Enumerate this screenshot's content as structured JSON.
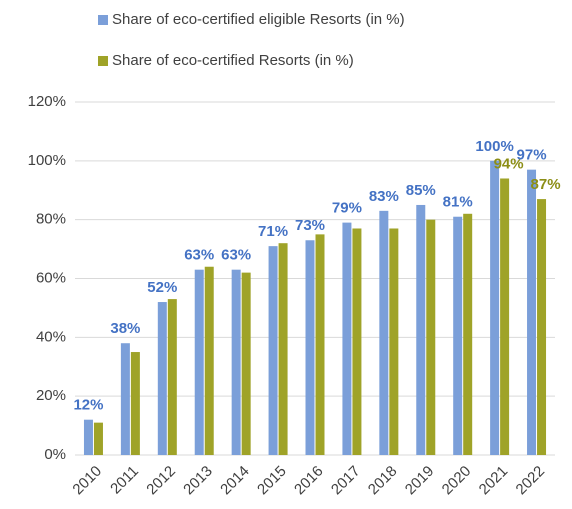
{
  "chart_data": {
    "type": "bar",
    "categories": [
      "2010",
      "2011",
      "2012",
      "2013",
      "2014",
      "2015",
      "2016",
      "2017",
      "2018",
      "2019",
      "2020",
      "2021",
      "2022"
    ],
    "series": [
      {
        "name": "Share of eco-certified eligible Resorts (in %)",
        "color": "#7b9fd9",
        "values": [
          12,
          38,
          52,
          63,
          63,
          71,
          73,
          79,
          83,
          85,
          81,
          100,
          97
        ],
        "value_labels": [
          "12%",
          "38%",
          "52%",
          "63%",
          "63%",
          "71%",
          "73%",
          "79%",
          "83%",
          "85%",
          "81%",
          "100%",
          "97%"
        ],
        "label_color": "#4472c4"
      },
      {
        "name": "Share of eco-certified Resorts (in %)",
        "color": "#9fa328",
        "values": [
          11,
          35,
          53,
          64,
          62,
          72,
          75,
          77,
          77,
          80,
          82,
          94,
          87
        ],
        "value_labels": [
          null,
          null,
          null,
          null,
          null,
          null,
          null,
          null,
          null,
          null,
          null,
          "94%",
          "87%"
        ],
        "label_color": "#8c8e16"
      }
    ],
    "ylim": [
      0,
      120
    ],
    "yticks": [
      {
        "value": 0,
        "label": "0%"
      },
      {
        "value": 20,
        "label": "20%"
      },
      {
        "value": 40,
        "label": "40%"
      },
      {
        "value": 60,
        "label": "60%"
      },
      {
        "value": 80,
        "label": "80%"
      },
      {
        "value": 100,
        "label": "100%"
      },
      {
        "value": 120,
        "label": "120%"
      }
    ],
    "grid": true,
    "legend": "top"
  }
}
